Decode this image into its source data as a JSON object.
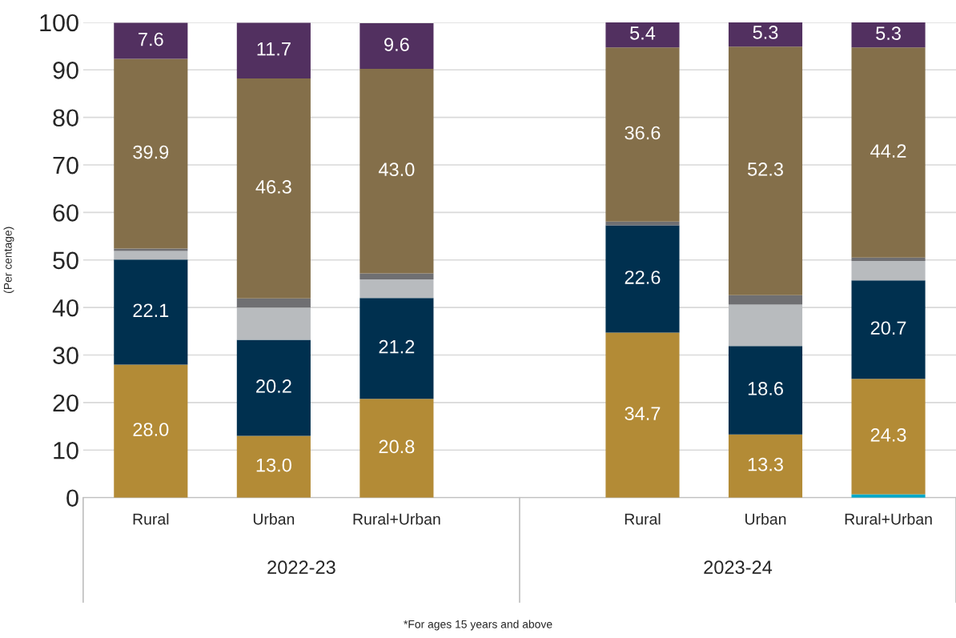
{
  "chart_data": {
    "type": "bar",
    "stacked": true,
    "ylabel": "(Per centage)",
    "categories": [
      "Rural",
      "Urban",
      "Rural+Urban",
      null,
      "Rural",
      "Urban",
      "Rural+Urban"
    ],
    "series": [
      {
        "color": "#00a8c8",
        "values": [
          0,
          0,
          0,
          null,
          0,
          0,
          0.7
        ],
        "value_labels": [
          null,
          null,
          null,
          null,
          null,
          null,
          null
        ]
      },
      {
        "color": "#b38b36",
        "values": [
          28.0,
          13.0,
          20.8,
          null,
          34.7,
          13.3,
          24.3
        ],
        "value_labels": [
          "28.0",
          "13.0",
          "20.8",
          null,
          "34.7",
          "13.3",
          "24.3"
        ]
      },
      {
        "color": "#00304f",
        "values": [
          22.1,
          20.2,
          21.2,
          null,
          22.6,
          18.6,
          20.7
        ],
        "value_labels": [
          "22.1",
          "20.2",
          "21.2",
          null,
          "22.6",
          "18.6",
          "20.7"
        ]
      },
      {
        "color": "#b8bbbe",
        "values": [
          1.8,
          6.8,
          3.9,
          null,
          0,
          8.7,
          4.1
        ],
        "value_labels": [
          null,
          null,
          null,
          null,
          null,
          null,
          null
        ]
      },
      {
        "color": "#6f6f72",
        "values": [
          0.5,
          1.9,
          1.3,
          null,
          0.8,
          2.0,
          0.7
        ],
        "value_labels": [
          null,
          null,
          null,
          null,
          null,
          null,
          null
        ]
      },
      {
        "color": "#846f4a",
        "values": [
          39.9,
          46.3,
          43.0,
          null,
          36.6,
          52.3,
          44.2
        ],
        "value_labels": [
          "39.9",
          "46.3",
          "43.0",
          null,
          "36.6",
          "52.3",
          "44.2"
        ]
      },
      {
        "color": "#523060",
        "values": [
          7.6,
          11.7,
          9.6,
          null,
          5.4,
          5.3,
          5.3
        ],
        "value_labels": [
          "7.6",
          "11.7",
          "9.6",
          null,
          "5.4",
          "5.3",
          "5.3"
        ]
      }
    ],
    "ylim": [
      0,
      100
    ],
    "yticks": [
      0,
      10,
      20,
      30,
      40,
      50,
      60,
      70,
      80,
      90,
      100
    ],
    "grid": "y",
    "legend": false,
    "annotations": [
      "2022-23",
      "2023-24",
      "*For ages 15 years and above"
    ]
  }
}
